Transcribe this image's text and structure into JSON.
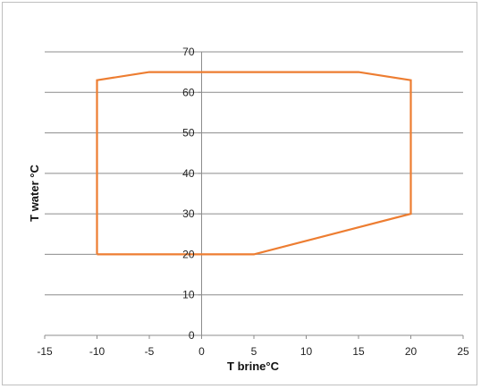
{
  "chart_data": {
    "type": "line",
    "title": "",
    "xlabel": "T brine°C",
    "ylabel": "T water °C",
    "xlim": [
      -15,
      25
    ],
    "ylim": [
      0,
      70
    ],
    "x_ticks": [
      -15,
      -10,
      -5,
      0,
      5,
      10,
      15,
      20,
      25
    ],
    "y_ticks": [
      0,
      10,
      20,
      30,
      40,
      50,
      60,
      70
    ],
    "grid": "horizontal",
    "legend": "none",
    "series": [
      {
        "color": "#ed7d31",
        "points": [
          {
            "x": -10,
            "y": 20
          },
          {
            "x": 5,
            "y": 20
          },
          {
            "x": 20,
            "y": 30
          },
          {
            "x": 20,
            "y": 63
          },
          {
            "x": 15,
            "y": 65
          },
          {
            "x": -5,
            "y": 65
          },
          {
            "x": -10,
            "y": 63
          },
          {
            "x": -10,
            "y": 20
          }
        ]
      }
    ]
  }
}
